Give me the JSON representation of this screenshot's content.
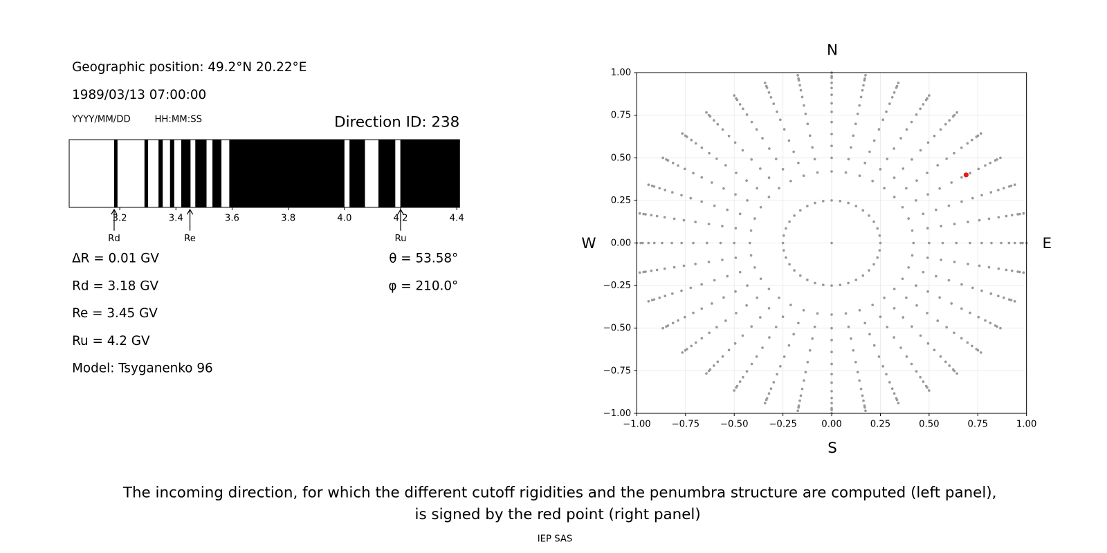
{
  "info": {
    "position": "Geographic position: 49.2°N 20.22°E",
    "datetime": "1989/03/13 07:00:00",
    "date_format": "YYYY/MM/DD",
    "time_format": "HH:MM:SS",
    "direction_id": "Direction ID: 238",
    "delta_r": "ΔR = 0.01 GV",
    "theta": "θ = 53.58°",
    "phi": "φ = 210.0°",
    "rd": "Rd = 3.18 GV",
    "re": "Re = 3.45 GV",
    "ru": "Ru = 4.2 GV",
    "model": "Model: Tsyganenko 96"
  },
  "chart_data": [
    {
      "type": "penumbra",
      "xlim": [
        3.02,
        4.41
      ],
      "xticks": [
        3.2,
        3.4,
        3.6,
        3.8,
        {
          "value": 4,
          "label": "4.0"
        },
        4.2,
        4.4
      ],
      "black_bands": [
        [
          3.18,
          3.192
        ],
        [
          3.288,
          3.301
        ],
        [
          3.338,
          3.353
        ],
        [
          3.379,
          3.394
        ],
        [
          3.419,
          3.452
        ],
        [
          3.469,
          3.509
        ],
        [
          3.53,
          3.562
        ],
        [
          3.59,
          4.0
        ],
        [
          4.018,
          4.073
        ],
        [
          4.121,
          4.181
        ],
        [
          4.199,
          4.41
        ]
      ],
      "markers": [
        {
          "label": "Rd",
          "value": 3.18
        },
        {
          "label": "Re",
          "value": 3.45
        },
        {
          "label": "Ru",
          "value": 4.2
        }
      ]
    },
    {
      "type": "polar-scatter",
      "xlim": [
        -1,
        1
      ],
      "ylim": [
        -1,
        1
      ],
      "grid": true,
      "color": "#999999",
      "xticks": [
        {
          "value": -1,
          "label": "−1.00"
        },
        {
          "value": -0.75,
          "label": "−0.75"
        },
        {
          "value": -0.5,
          "label": "−0.50"
        },
        {
          "value": -0.25,
          "label": "−0.25"
        },
        {
          "value": 0,
          "label": "0.00"
        },
        {
          "value": 0.25,
          "label": "0.25"
        },
        {
          "value": 0.5,
          "label": "0.50"
        },
        {
          "value": 0.75,
          "label": "0.75"
        },
        {
          "value": 1,
          "label": "1.00"
        }
      ],
      "yticks": [
        {
          "value": -1,
          "label": "−1.00"
        },
        {
          "value": -0.75,
          "label": "−0.75"
        },
        {
          "value": -0.5,
          "label": "−0.50"
        },
        {
          "value": -0.25,
          "label": "−0.25"
        },
        {
          "value": 0,
          "label": "0.00"
        },
        {
          "value": 0.25,
          "label": "0.25"
        },
        {
          "value": 0.5,
          "label": "0.50"
        },
        {
          "value": 0.75,
          "label": "0.75"
        },
        {
          "value": 1,
          "label": "1.00"
        }
      ],
      "radii": [
        0.25,
        0.42,
        0.5,
        0.57,
        0.64,
        0.71,
        0.77,
        0.82,
        0.87,
        0.91,
        0.94,
        0.97,
        0.98,
        1.0
      ],
      "angles": [
        0,
        10,
        20,
        30,
        40,
        50,
        60,
        70,
        80,
        90,
        100,
        110,
        120,
        130,
        140,
        150,
        160,
        170,
        180,
        190,
        200,
        210,
        220,
        230,
        240,
        250,
        260,
        270,
        280,
        290,
        300,
        310,
        320,
        330,
        340,
        350
      ],
      "center": {
        "x": 0,
        "y": 0
      },
      "highlight": {
        "x": 0.69,
        "y": 0.4,
        "color": "#e41a1c"
      }
    }
  ],
  "compass": {
    "n": "N",
    "s": "S",
    "w": "W",
    "e": "E"
  },
  "caption": [
    "The incoming direction, for which the different cutoff rigidities and the penumbra structure are computed (left panel),",
    "is signed by the red point (right panel)"
  ],
  "footer": "IEP SAS"
}
